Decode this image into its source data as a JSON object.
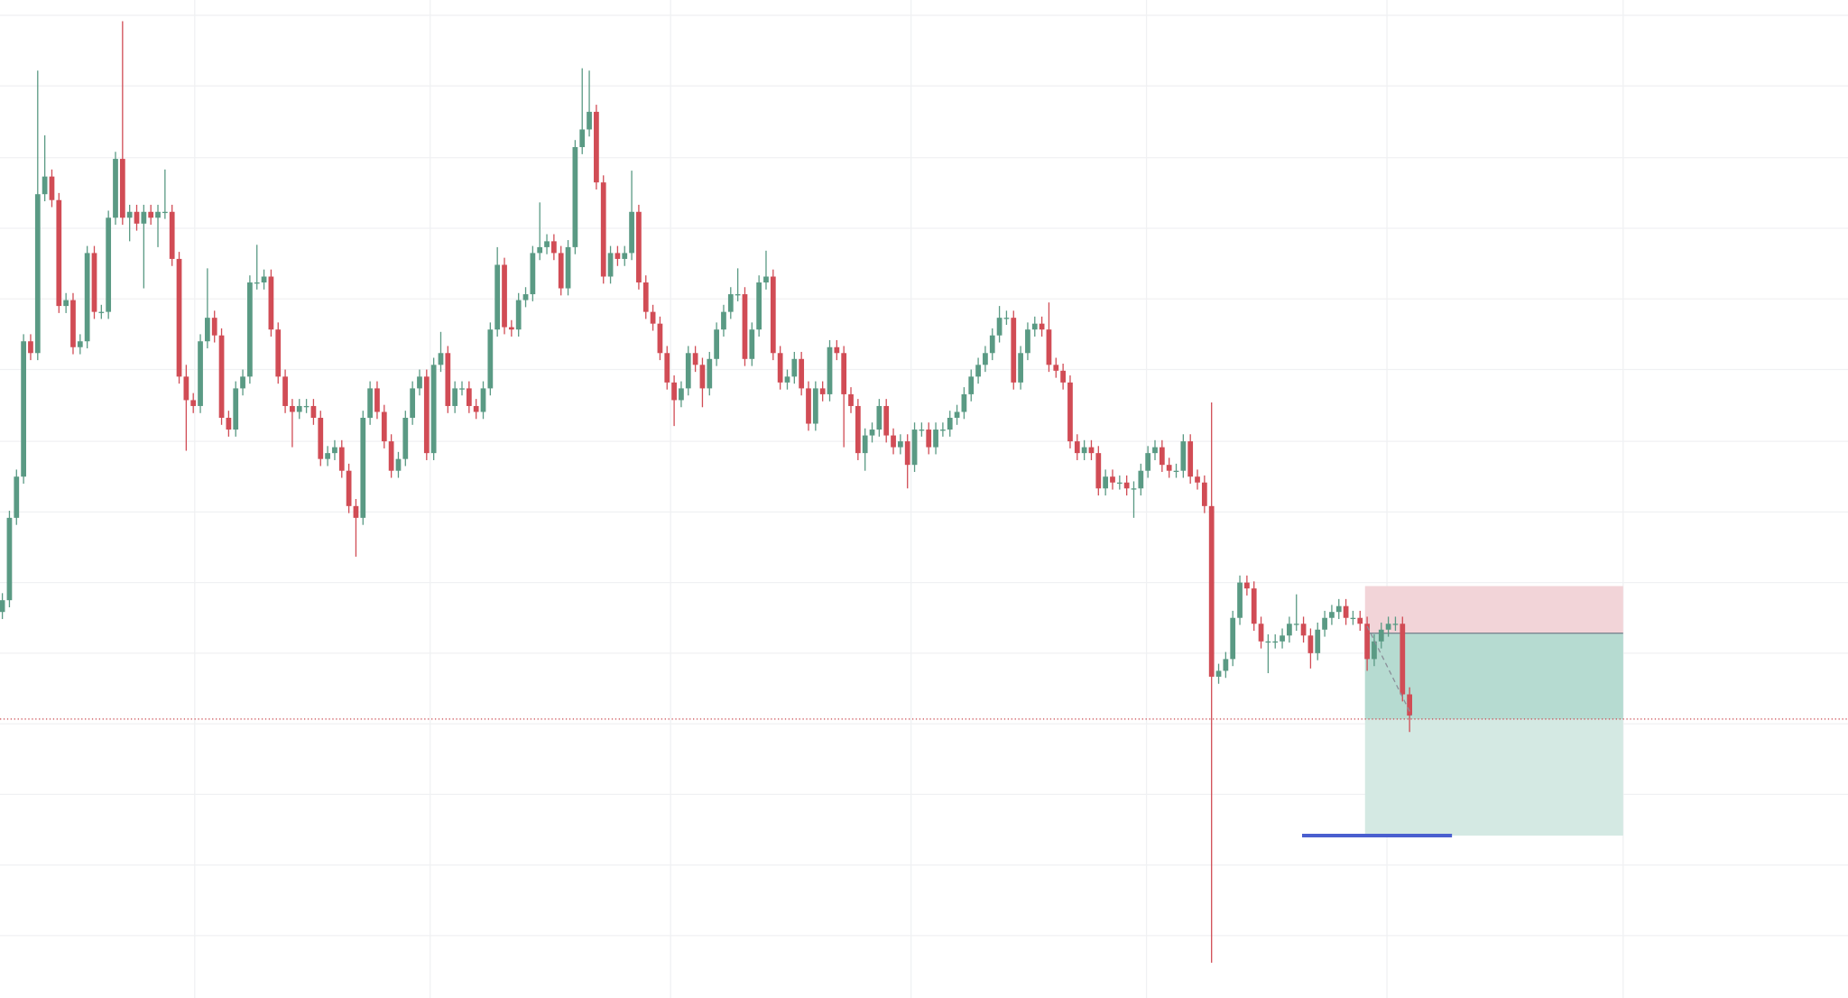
{
  "chart_data": {
    "type": "candlestick",
    "xlim": [
      -0.333,
      261
    ],
    "ylim": [
      52,
      900
    ],
    "xticks": [
      27.2,
      60.5,
      94.5,
      128.5,
      161.8,
      195.8,
      229.2
    ],
    "yticks": [
      887,
      827,
      766,
      706,
      646,
      586,
      525,
      465,
      405,
      345,
      285,
      225,
      165,
      105
    ],
    "grid": true,
    "up_color": "#5a9a84",
    "down_color": "#d14c55",
    "open": [
      380,
      390,
      460,
      495,
      610,
      600,
      735,
      750,
      730,
      640,
      645,
      605,
      610,
      685,
      635,
      635,
      715,
      765,
      715,
      720,
      710,
      720,
      715,
      720,
      720,
      680,
      580,
      560,
      555,
      610,
      630,
      615,
      545,
      535,
      570,
      580,
      660,
      660,
      665,
      620,
      580,
      555,
      550,
      555,
      555,
      545,
      510,
      515,
      520,
      500,
      470,
      460,
      545,
      570,
      550,
      525,
      500,
      510,
      545,
      570,
      580,
      515,
      590,
      600,
      555,
      570,
      570,
      555,
      550,
      570,
      620,
      675,
      622,
      620,
      645,
      650,
      685,
      690,
      695,
      685,
      655,
      690,
      775,
      790,
      805,
      745,
      665,
      685,
      680,
      685,
      720,
      660,
      635,
      625,
      600,
      575,
      560,
      570,
      600,
      590,
      570,
      595,
      620,
      635,
      650,
      650,
      595,
      620,
      660,
      665,
      600,
      575,
      580,
      595,
      570,
      540,
      570,
      565,
      605,
      600,
      565,
      555,
      515,
      530,
      535,
      555,
      530,
      520,
      525,
      505,
      535,
      535,
      520,
      535,
      535,
      545,
      550,
      565,
      580,
      590,
      600,
      615,
      630,
      630,
      575,
      600,
      620,
      625,
      620,
      590,
      585,
      575,
      525,
      515,
      520,
      515,
      485,
      495,
      490,
      490,
      485,
      485,
      500,
      515,
      520,
      505,
      500,
      500,
      525,
      495,
      490,
      470,
      325,
      330,
      340,
      375,
      405,
      400,
      370,
      355,
      355,
      355,
      360,
      370,
      370,
      360,
      345,
      365,
      375,
      380,
      385,
      375,
      375,
      370,
      340,
      355,
      365,
      370,
      370,
      310
    ],
    "high": [
      396,
      466,
      501,
      616,
      616,
      840,
      785,
      756,
      736,
      651,
      651,
      616,
      691,
      691,
      641,
      721,
      771,
      882,
      726,
      726,
      726,
      726,
      726,
      756,
      726,
      686,
      590,
      566,
      616,
      672,
      636,
      621,
      551,
      576,
      586,
      666,
      692,
      671,
      671,
      626,
      586,
      561,
      561,
      561,
      561,
      551,
      521,
      526,
      526,
      506,
      476,
      551,
      576,
      576,
      556,
      531,
      516,
      551,
      576,
      586,
      586,
      596,
      618,
      606,
      576,
      576,
      576,
      561,
      576,
      626,
      690,
      681,
      628,
      651,
      656,
      691,
      728,
      701,
      701,
      691,
      696,
      781,
      842,
      840,
      811,
      751,
      691,
      691,
      691,
      755,
      726,
      666,
      641,
      631,
      606,
      581,
      576,
      606,
      606,
      596,
      601,
      626,
      641,
      656,
      672,
      656,
      626,
      666,
      687,
      671,
      606,
      586,
      601,
      601,
      576,
      576,
      576,
      611,
      611,
      606,
      571,
      561,
      536,
      541,
      561,
      561,
      536,
      531,
      531,
      541,
      541,
      541,
      541,
      541,
      551,
      556,
      571,
      586,
      596,
      606,
      621,
      640,
      636,
      636,
      606,
      626,
      631,
      631,
      643,
      596,
      591,
      581,
      531,
      526,
      526,
      521,
      501,
      501,
      496,
      496,
      491,
      506,
      521,
      526,
      526,
      511,
      506,
      531,
      531,
      501,
      496,
      558,
      336,
      346,
      381,
      411,
      411,
      406,
      376,
      361,
      361,
      366,
      376,
      395,
      376,
      366,
      371,
      381,
      386,
      391,
      391,
      381,
      381,
      376,
      361,
      371,
      376,
      376,
      376,
      316
    ],
    "low": [
      374,
      384,
      454,
      489,
      594,
      594,
      729,
      724,
      634,
      634,
      599,
      599,
      604,
      629,
      629,
      629,
      709,
      709,
      695,
      704,
      655,
      709,
      690,
      714,
      674,
      574,
      517,
      549,
      549,
      604,
      609,
      539,
      529,
      529,
      564,
      574,
      654,
      654,
      614,
      574,
      549,
      520,
      544,
      549,
      539,
      504,
      504,
      509,
      494,
      464,
      427,
      454,
      539,
      544,
      519,
      494,
      494,
      504,
      539,
      564,
      509,
      509,
      584,
      549,
      549,
      564,
      549,
      544,
      544,
      564,
      614,
      616,
      614,
      614,
      639,
      644,
      679,
      684,
      679,
      649,
      649,
      684,
      769,
      784,
      739,
      659,
      659,
      674,
      674,
      679,
      654,
      629,
      619,
      594,
      569,
      538,
      554,
      564,
      584,
      554,
      564,
      589,
      614,
      629,
      644,
      589,
      589,
      614,
      654,
      594,
      569,
      569,
      574,
      564,
      534,
      534,
      559,
      559,
      594,
      520,
      549,
      509,
      500,
      524,
      529,
      524,
      514,
      514,
      485,
      499,
      529,
      514,
      514,
      529,
      529,
      539,
      544,
      559,
      574,
      584,
      594,
      609,
      624,
      569,
      569,
      594,
      614,
      614,
      584,
      579,
      569,
      519,
      509,
      509,
      509,
      479,
      479,
      484,
      484,
      479,
      460,
      479,
      494,
      509,
      499,
      494,
      494,
      494,
      489,
      484,
      464,
      82,
      319,
      324,
      334,
      369,
      394,
      364,
      349,
      328,
      349,
      349,
      354,
      364,
      354,
      332,
      339,
      359,
      369,
      374,
      369,
      369,
      364,
      330,
      334,
      349,
      359,
      364,
      304,
      278
    ],
    "close": [
      390,
      460,
      495,
      610,
      600,
      735,
      750,
      730,
      640,
      645,
      605,
      610,
      685,
      635,
      635,
      715,
      765,
      715,
      720,
      710,
      720,
      715,
      720,
      720,
      680,
      580,
      560,
      555,
      610,
      630,
      615,
      545,
      535,
      570,
      580,
      660,
      660,
      665,
      620,
      580,
      555,
      550,
      555,
      555,
      545,
      510,
      515,
      520,
      500,
      470,
      460,
      545,
      570,
      550,
      525,
      500,
      510,
      545,
      570,
      580,
      515,
      590,
      600,
      555,
      570,
      570,
      555,
      550,
      570,
      620,
      675,
      622,
      620,
      645,
      650,
      685,
      690,
      695,
      685,
      655,
      690,
      775,
      790,
      805,
      745,
      665,
      685,
      680,
      685,
      720,
      660,
      635,
      625,
      600,
      575,
      560,
      570,
      600,
      590,
      570,
      595,
      620,
      635,
      650,
      650,
      595,
      620,
      660,
      665,
      600,
      575,
      580,
      595,
      570,
      540,
      570,
      565,
      605,
      600,
      565,
      555,
      515,
      530,
      535,
      555,
      530,
      520,
      525,
      505,
      535,
      535,
      520,
      535,
      535,
      545,
      550,
      565,
      580,
      590,
      600,
      615,
      630,
      630,
      575,
      600,
      620,
      625,
      620,
      590,
      585,
      575,
      525,
      515,
      520,
      515,
      485,
      495,
      490,
      490,
      485,
      485,
      500,
      515,
      520,
      505,
      500,
      500,
      525,
      495,
      490,
      470,
      325,
      330,
      340,
      375,
      405,
      400,
      370,
      355,
      355,
      355,
      360,
      370,
      370,
      360,
      345,
      365,
      375,
      380,
      385,
      375,
      375,
      370,
      340,
      355,
      365,
      370,
      370,
      310,
      292
    ],
    "position": {
      "start": 192.7,
      "end": 229.2,
      "entry": 362,
      "stop": 402,
      "target": 190,
      "stop_color": "#f2d4d8",
      "target_color": "#d4e9e3",
      "active_color": "#b6dbd1"
    },
    "price_line": {
      "value": 289,
      "color": "#c9484f"
    },
    "level_line": {
      "start": 183.8,
      "end": 205,
      "value": 190,
      "color": "#4a5fcf"
    },
    "trend_line": {
      "x": [
        193,
        199.3
      ],
      "y": [
        368,
        292
      ],
      "color": "#8a8f99"
    }
  }
}
